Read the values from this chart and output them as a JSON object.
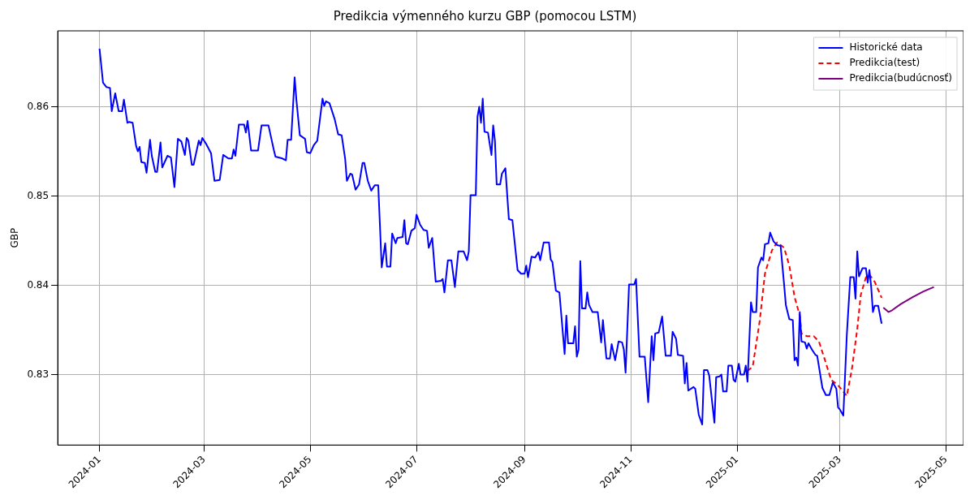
{
  "chart_data": {
    "type": "line",
    "title": "Predikcia výmenného kurzu GBP (pomocou LSTM)",
    "ylabel": "GBP",
    "xlim": [
      "2023-12-08",
      "2025-05-11"
    ],
    "xticks": [
      "2024-01",
      "2024-03",
      "2024-05",
      "2024-07",
      "2024-09",
      "2024-11",
      "2025-01",
      "2025-03",
      "2025-05"
    ],
    "ylim": [
      0.8221,
      0.8685
    ],
    "yticks": [
      0.83,
      0.84,
      0.85,
      0.86
    ],
    "grid": true,
    "legend": "top right",
    "marker": "none",
    "series": [
      {
        "name": "Historické data",
        "color": "#0000ff",
        "line_style": "solid",
        "x": [
          "2024-01-01",
          "2024-01-03",
          "2024-01-05",
          "2024-01-07",
          "2024-01-08",
          "2024-01-10",
          "2024-01-12",
          "2024-01-14",
          "2024-01-15",
          "2024-01-17",
          "2024-01-18",
          "2024-01-20",
          "2024-01-22",
          "2024-01-23",
          "2024-01-24",
          "2024-01-25",
          "2024-01-27",
          "2024-01-28",
          "2024-01-30",
          "2024-01-31",
          "2024-02-02",
          "2024-02-03",
          "2024-02-05",
          "2024-02-06",
          "2024-02-09",
          "2024-02-11",
          "2024-02-13",
          "2024-02-15",
          "2024-02-17",
          "2024-02-19",
          "2024-02-20",
          "2024-02-21",
          "2024-02-23",
          "2024-02-24",
          "2024-02-27",
          "2024-02-28",
          "2024-02-29",
          "2024-03-02",
          "2024-03-05",
          "2024-03-07",
          "2024-03-10",
          "2024-03-12",
          "2024-03-15",
          "2024-03-17",
          "2024-03-18",
          "2024-03-19",
          "2024-03-21",
          "2024-03-24",
          "2024-03-25",
          "2024-03-26",
          "2024-03-28",
          "2024-04-01",
          "2024-04-03",
          "2024-04-07",
          "2024-04-10",
          "2024-04-11",
          "2024-04-15",
          "2024-04-17",
          "2024-04-18",
          "2024-04-20",
          "2024-04-22",
          "2024-04-23",
          "2024-04-25",
          "2024-04-28",
          "2024-04-29",
          "2024-05-01",
          "2024-05-03",
          "2024-05-05",
          "2024-05-08",
          "2024-05-09",
          "2024-05-10",
          "2024-05-12",
          "2024-05-15",
          "2024-05-17",
          "2024-05-19",
          "2024-05-21",
          "2024-05-22",
          "2024-05-24",
          "2024-05-25",
          "2024-05-27",
          "2024-05-29",
          "2024-05-31",
          "2024-06-01",
          "2024-06-03",
          "2024-06-05",
          "2024-06-07",
          "2024-06-09",
          "2024-06-11",
          "2024-06-13",
          "2024-06-14",
          "2024-06-16",
          "2024-06-17",
          "2024-06-19",
          "2024-06-20",
          "2024-06-23",
          "2024-06-24",
          "2024-06-25",
          "2024-06-26",
          "2024-06-28",
          "2024-06-30",
          "2024-07-01",
          "2024-07-03",
          "2024-07-05",
          "2024-07-07",
          "2024-07-08",
          "2024-07-10",
          "2024-07-12",
          "2024-07-15",
          "2024-07-16",
          "2024-07-17",
          "2024-07-19",
          "2024-07-21",
          "2024-07-23",
          "2024-07-25",
          "2024-07-28",
          "2024-07-30",
          "2024-07-31",
          "2024-08-01",
          "2024-08-04",
          "2024-08-05",
          "2024-08-06",
          "2024-08-07",
          "2024-08-08",
          "2024-08-09",
          "2024-08-11",
          "2024-08-13",
          "2024-08-14",
          "2024-08-15",
          "2024-08-16",
          "2024-08-18",
          "2024-08-19",
          "2024-08-21",
          "2024-08-23",
          "2024-08-25",
          "2024-08-28",
          "2024-08-30",
          "2024-09-01",
          "2024-09-02",
          "2024-09-03",
          "2024-09-05",
          "2024-09-07",
          "2024-09-09",
          "2024-09-10",
          "2024-09-12",
          "2024-09-15",
          "2024-09-16",
          "2024-09-17",
          "2024-09-19",
          "2024-09-21",
          "2024-09-24",
          "2024-09-25",
          "2024-09-26",
          "2024-09-29",
          "2024-09-30",
          "2024-10-01",
          "2024-10-02",
          "2024-10-03",
          "2024-10-04",
          "2024-10-06",
          "2024-10-07",
          "2024-10-08",
          "2024-10-10",
          "2024-10-13",
          "2024-10-15",
          "2024-10-16",
          "2024-10-18",
          "2024-10-20",
          "2024-10-21",
          "2024-10-23",
          "2024-10-25",
          "2024-10-27",
          "2024-10-28",
          "2024-10-29",
          "2024-10-31",
          "2024-11-03",
          "2024-11-04",
          "2024-11-06",
          "2024-11-09",
          "2024-11-11",
          "2024-11-13",
          "2024-11-14",
          "2024-11-15",
          "2024-11-17",
          "2024-11-19",
          "2024-11-21",
          "2024-11-24",
          "2024-11-25",
          "2024-11-27",
          "2024-11-28",
          "2024-12-01",
          "2024-12-02",
          "2024-12-03",
          "2024-12-04",
          "2024-12-07",
          "2024-12-08",
          "2024-12-10",
          "2024-12-12",
          "2024-12-13",
          "2024-12-15",
          "2024-12-16",
          "2024-12-19",
          "2024-12-20",
          "2024-12-22",
          "2024-12-23",
          "2024-12-24",
          "2024-12-26",
          "2024-12-27",
          "2024-12-29",
          "2024-12-30",
          "2024-12-31",
          "2025-01-02",
          "2025-01-03",
          "2025-01-05",
          "2025-01-06",
          "2025-01-07",
          "2025-01-09",
          "2025-01-10",
          "2025-01-12",
          "2025-01-13",
          "2025-01-15",
          "2025-01-16",
          "2025-01-17",
          "2025-01-19",
          "2025-01-20",
          "2025-01-22",
          "2025-01-24",
          "2025-01-26",
          "2025-01-28",
          "2025-01-29",
          "2025-01-31",
          "2025-02-02",
          "2025-02-03",
          "2025-02-04",
          "2025-02-05",
          "2025-02-06",
          "2025-02-07",
          "2025-02-09",
          "2025-02-10",
          "2025-02-11",
          "2025-02-13",
          "2025-02-15",
          "2025-02-16",
          "2025-02-19",
          "2025-02-21",
          "2025-02-23",
          "2025-02-25",
          "2025-02-27",
          "2025-02-28",
          "2025-03-01",
          "2025-03-03",
          "2025-03-05",
          "2025-03-07",
          "2025-03-09",
          "2025-03-10",
          "2025-03-11",
          "2025-03-12",
          "2025-03-14",
          "2025-03-16",
          "2025-03-17",
          "2025-03-18",
          "2025-03-19",
          "2025-03-20",
          "2025-03-21",
          "2025-03-23",
          "2025-03-25"
        ],
        "values": [
          0.8665,
          0.8627,
          0.8622,
          0.8621,
          0.8595,
          0.8615,
          0.8595,
          0.8595,
          0.8608,
          0.8582,
          0.8583,
          0.8582,
          0.8556,
          0.855,
          0.8555,
          0.8538,
          0.8537,
          0.8526,
          0.8563,
          0.8545,
          0.8527,
          0.8527,
          0.856,
          0.8532,
          0.8545,
          0.8543,
          0.851,
          0.8564,
          0.8561,
          0.8546,
          0.8565,
          0.8562,
          0.8535,
          0.8535,
          0.8562,
          0.8557,
          0.8565,
          0.8559,
          0.8548,
          0.8517,
          0.8518,
          0.8546,
          0.8542,
          0.8542,
          0.8552,
          0.8545,
          0.858,
          0.858,
          0.8571,
          0.8584,
          0.8551,
          0.8551,
          0.8579,
          0.8579,
          0.8552,
          0.8544,
          0.8542,
          0.854,
          0.8563,
          0.8563,
          0.8633,
          0.8608,
          0.8568,
          0.8564,
          0.8549,
          0.8548,
          0.8557,
          0.8562,
          0.8609,
          0.8601,
          0.8606,
          0.8604,
          0.8586,
          0.8569,
          0.8568,
          0.8542,
          0.8517,
          0.8525,
          0.8524,
          0.8507,
          0.8513,
          0.8537,
          0.8537,
          0.8517,
          0.8506,
          0.8512,
          0.8512,
          0.842,
          0.8447,
          0.8421,
          0.8421,
          0.8458,
          0.8447,
          0.8453,
          0.8454,
          0.8473,
          0.8447,
          0.8446,
          0.8461,
          0.8464,
          0.8479,
          0.8468,
          0.8462,
          0.8461,
          0.8442,
          0.8453,
          0.8404,
          0.8405,
          0.8407,
          0.8392,
          0.8428,
          0.8428,
          0.8398,
          0.8438,
          0.8438,
          0.8428,
          0.8438,
          0.8501,
          0.8501,
          0.8589,
          0.86,
          0.8582,
          0.8609,
          0.8572,
          0.8571,
          0.8546,
          0.8579,
          0.8562,
          0.8513,
          0.8513,
          0.8525,
          0.8531,
          0.8474,
          0.8473,
          0.8417,
          0.8413,
          0.8413,
          0.8422,
          0.8409,
          0.8432,
          0.8431,
          0.8437,
          0.8428,
          0.8448,
          0.8448,
          0.8429,
          0.8426,
          0.8394,
          0.8392,
          0.8323,
          0.8366,
          0.8335,
          0.8335,
          0.8354,
          0.832,
          0.8328,
          0.8427,
          0.8374,
          0.8374,
          0.8392,
          0.8378,
          0.837,
          0.837,
          0.8336,
          0.8361,
          0.8318,
          0.8318,
          0.8334,
          0.8316,
          0.8337,
          0.8336,
          0.8328,
          0.8302,
          0.8401,
          0.8401,
          0.8407,
          0.832,
          0.832,
          0.8269,
          0.8343,
          0.8316,
          0.8346,
          0.8347,
          0.8365,
          0.8321,
          0.8321,
          0.8348,
          0.834,
          0.8322,
          0.8321,
          0.829,
          0.8313,
          0.8282,
          0.8286,
          0.8284,
          0.8255,
          0.8244,
          0.8305,
          0.8305,
          0.8299,
          0.8246,
          0.8297,
          0.8298,
          0.83,
          0.8281,
          0.8281,
          0.831,
          0.831,
          0.8294,
          0.8292,
          0.8312,
          0.83,
          0.83,
          0.831,
          0.8292,
          0.8381,
          0.837,
          0.837,
          0.842,
          0.8431,
          0.8428,
          0.8446,
          0.8447,
          0.8459,
          0.8449,
          0.8445,
          0.8444,
          0.8401,
          0.8378,
          0.8362,
          0.8361,
          0.8316,
          0.8319,
          0.831,
          0.837,
          0.8337,
          0.8336,
          0.8329,
          0.8335,
          0.8328,
          0.8322,
          0.8321,
          0.8285,
          0.8277,
          0.8277,
          0.8291,
          0.8284,
          0.8263,
          0.8261,
          0.8254,
          0.8344,
          0.8409,
          0.8409,
          0.8385,
          0.8438,
          0.841,
          0.8419,
          0.8419,
          0.8403,
          0.8417,
          0.8398,
          0.837,
          0.8377,
          0.8377,
          0.8357
        ]
      },
      {
        "name": "Predikcia(test)",
        "color": "#ff0000",
        "line_style": "dashed",
        "x": [
          "2025-01-07",
          "2025-01-10",
          "2025-01-14",
          "2025-01-17",
          "2025-01-21",
          "2025-01-24",
          "2025-01-28",
          "2025-01-31",
          "2025-02-03",
          "2025-02-06",
          "2025-02-07",
          "2025-02-10",
          "2025-02-14",
          "2025-02-17",
          "2025-02-20",
          "2025-02-24",
          "2025-02-28",
          "2025-03-05",
          "2025-03-08",
          "2025-03-11",
          "2025-03-13",
          "2025-03-16",
          "2025-03-18",
          "2025-03-21",
          "2025-03-23",
          "2025-03-25"
        ],
        "values": [
          0.8304,
          0.8309,
          0.836,
          0.8413,
          0.8439,
          0.8448,
          0.8442,
          0.8422,
          0.8387,
          0.8366,
          0.8346,
          0.8343,
          0.8343,
          0.8337,
          0.8319,
          0.8294,
          0.8288,
          0.8276,
          0.8307,
          0.8351,
          0.8389,
          0.8409,
          0.8412,
          0.8404,
          0.8395,
          0.8386
        ]
      },
      {
        "name": "Predikcia(budúcnosť)",
        "color": "#800080",
        "line_style": "solid",
        "x": [
          "2025-03-26",
          "2025-03-29",
          "2025-03-31",
          "2025-04-05",
          "2025-04-12",
          "2025-04-18",
          "2025-04-24"
        ],
        "values": [
          0.8375,
          0.837,
          0.8372,
          0.8379,
          0.8387,
          0.8393,
          0.8398
        ]
      }
    ]
  }
}
